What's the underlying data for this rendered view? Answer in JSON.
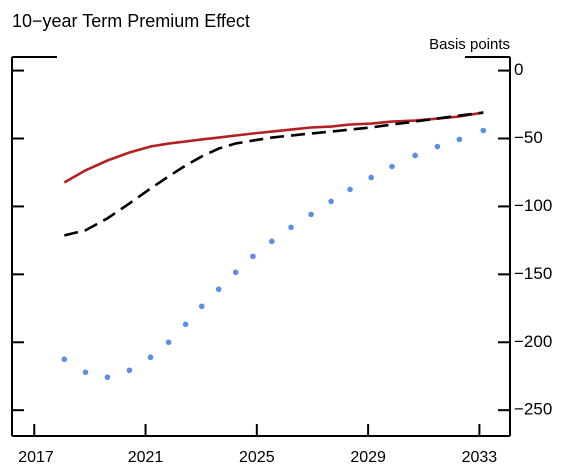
{
  "chart_data": {
    "type": "line",
    "title": "10−year Term Premium Effect",
    "y_axis_label": "Basis points",
    "x": [
      2018.08,
      2018.84,
      2019.63,
      2020.42,
      2021.18,
      2021.83,
      2022.44,
      2023.02,
      2023.63,
      2024.24,
      2024.86,
      2025.54,
      2026.23,
      2026.95,
      2027.67,
      2028.35,
      2029.11,
      2029.86,
      2030.69,
      2031.49,
      2032.28,
      2033.14
    ],
    "series": [
      {
        "color": "#b22222",
        "style": "solid",
        "values": [
          -82.4,
          -73.5,
          -66.2,
          -60.3,
          -55.9,
          -53.7,
          -52.2,
          -50.7,
          -49.3,
          -47.8,
          -46.3,
          -44.9,
          -43.4,
          -41.9,
          -41.2,
          -39.7,
          -39.0,
          -37.5,
          -36.8,
          -35.3,
          -33.8,
          -30.9
        ]
      },
      {
        "color": "#000000",
        "style": "dashed",
        "values": [
          -121.3,
          -117.6,
          -108.8,
          -97.8,
          -86.8,
          -77.9,
          -69.9,
          -63.2,
          -57.4,
          -53.7,
          -51.5,
          -49.3,
          -47.8,
          -46.3,
          -44.9,
          -43.4,
          -41.9,
          -39.7,
          -37.5,
          -35.3,
          -33.1,
          -30.9
        ]
      },
      {
        "color": "#5b8ee6",
        "style": "dots",
        "values": [
          -212.5,
          -222.1,
          -225.7,
          -220.6,
          -211.0,
          -200.0,
          -186.8,
          -173.5,
          -161.0,
          -148.5,
          -136.8,
          -125.7,
          -115.4,
          -105.9,
          -96.3,
          -87.5,
          -78.7,
          -70.6,
          -62.5,
          -55.9,
          -50.7,
          -44.1
        ]
      }
    ],
    "xlim": [
      2016.2,
      2034.1
    ],
    "xticks": [
      2017,
      2021,
      2025,
      2029,
      2033
    ],
    "ylim": [
      -269,
      10
    ],
    "yticks": [
      0,
      {
        "value": -50,
        "label": "−50"
      },
      {
        "value": -100,
        "label": "−100"
      },
      {
        "value": -150,
        "label": "−150"
      },
      {
        "value": -200,
        "label": "−200"
      },
      {
        "value": -250,
        "label": "−250"
      }
    ]
  }
}
